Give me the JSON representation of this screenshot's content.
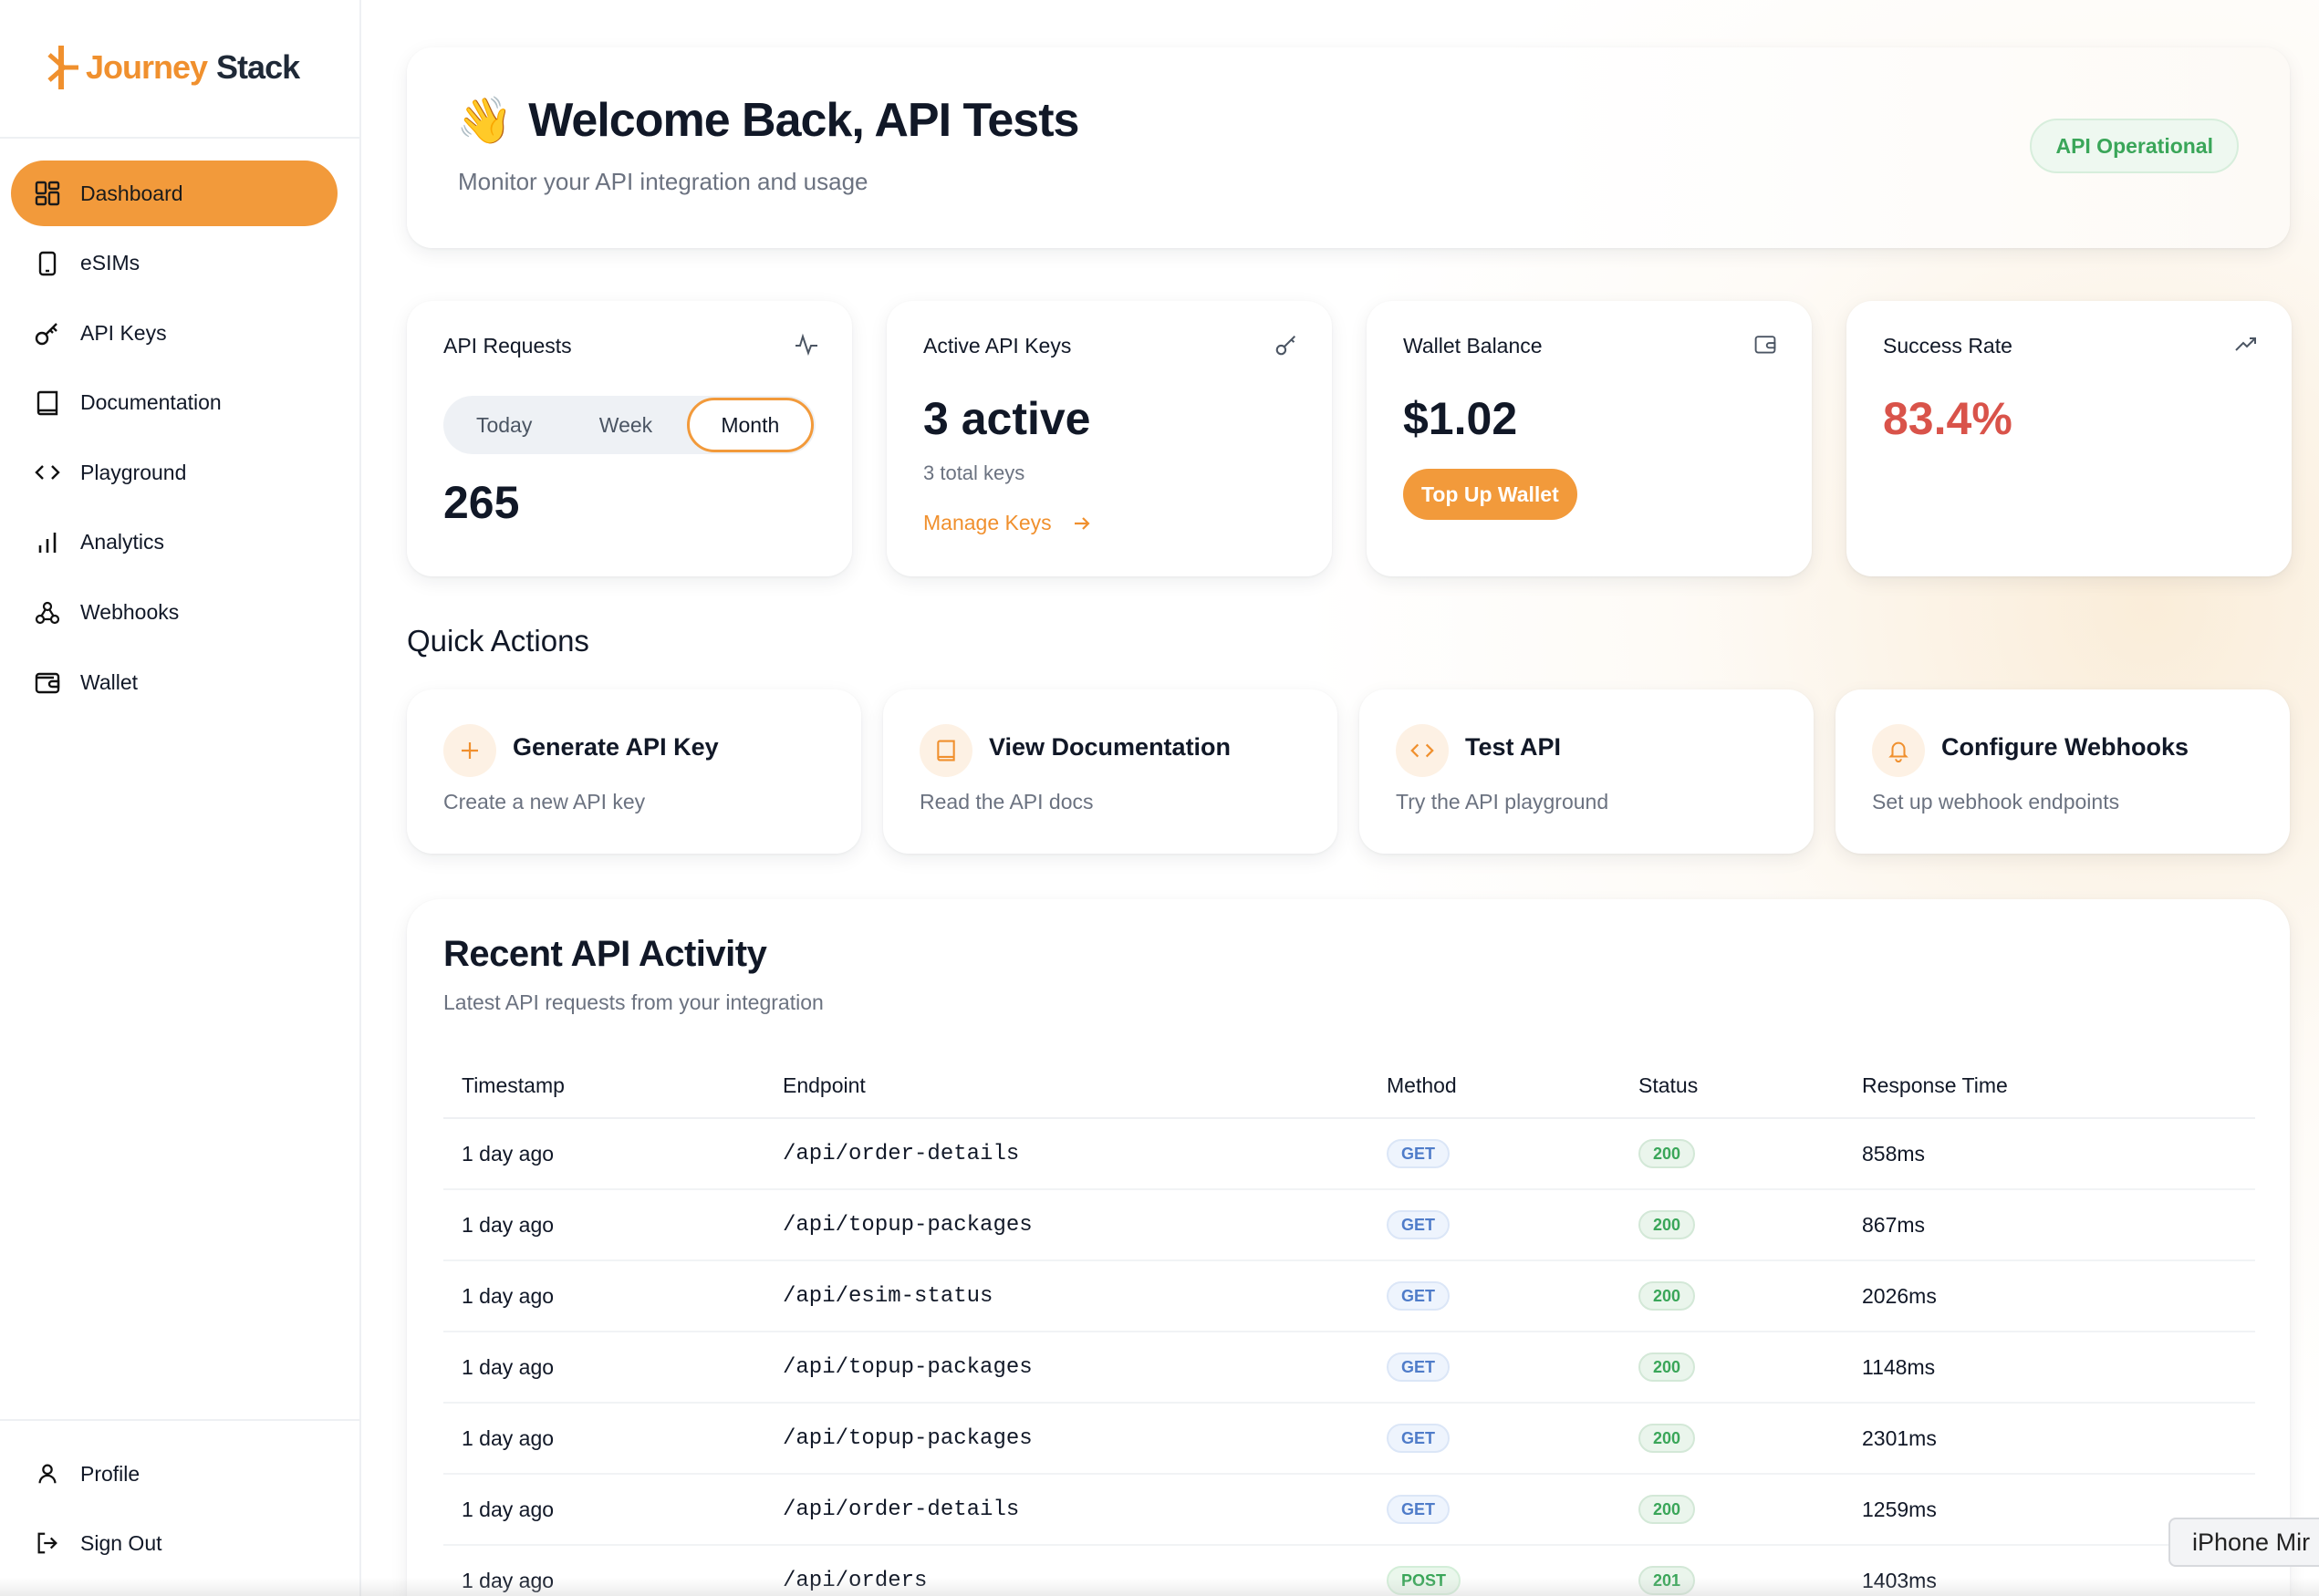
{
  "brand": {
    "name_part1": "Journey",
    "name_part2": "Stack",
    "accent": "#f29a3b"
  },
  "sidebar": {
    "items": [
      {
        "label": "Dashboard",
        "icon": "dashboard-grid-icon",
        "active": true
      },
      {
        "label": "eSIMs",
        "icon": "phone-icon"
      },
      {
        "label": "API Keys",
        "icon": "key-icon"
      },
      {
        "label": "Documentation",
        "icon": "book-icon"
      },
      {
        "label": "Playground",
        "icon": "code-icon"
      },
      {
        "label": "Analytics",
        "icon": "bar-chart-icon"
      },
      {
        "label": "Webhooks",
        "icon": "webhook-icon"
      },
      {
        "label": "Wallet",
        "icon": "wallet-icon"
      }
    ],
    "bottom": [
      {
        "label": "Profile",
        "icon": "user-icon"
      },
      {
        "label": "Sign Out",
        "icon": "sign-out-icon"
      }
    ]
  },
  "welcome": {
    "emoji": "👋",
    "title": "Welcome Back, API Tests",
    "subtitle": "Monitor your API integration and usage",
    "status": "API Operational"
  },
  "stats": {
    "requests": {
      "label": "API Requests",
      "tabs": [
        "Today",
        "Week",
        "Month"
      ],
      "active_tab": "Month",
      "value": "265"
    },
    "keys": {
      "label": "Active API Keys",
      "value": "3 active",
      "sub": "3 total keys",
      "link": "Manage Keys"
    },
    "wallet": {
      "label": "Wallet Balance",
      "value": "$1.02",
      "button": "Top Up Wallet"
    },
    "success": {
      "label": "Success Rate",
      "value": "83.4%",
      "color": "#d9534a"
    }
  },
  "quick_actions": {
    "title": "Quick Actions",
    "items": [
      {
        "title": "Generate API Key",
        "desc": "Create a new API key",
        "icon": "plus-icon"
      },
      {
        "title": "View Documentation",
        "desc": "Read the API docs",
        "icon": "book-icon"
      },
      {
        "title": "Test API",
        "desc": "Try the API playground",
        "icon": "code-icon"
      },
      {
        "title": "Configure Webhooks",
        "desc": "Set up webhook endpoints",
        "icon": "bell-icon"
      }
    ]
  },
  "activity": {
    "title": "Recent API Activity",
    "subtitle": "Latest API requests from your integration",
    "columns": [
      "Timestamp",
      "Endpoint",
      "Method",
      "Status",
      "Response Time"
    ],
    "rows": [
      {
        "timestamp": "1 day ago",
        "endpoint": "/api/order-details",
        "method": "GET",
        "status": "200",
        "time": "858ms"
      },
      {
        "timestamp": "1 day ago",
        "endpoint": "/api/topup-packages",
        "method": "GET",
        "status": "200",
        "time": "867ms"
      },
      {
        "timestamp": "1 day ago",
        "endpoint": "/api/esim-status",
        "method": "GET",
        "status": "200",
        "time": "2026ms"
      },
      {
        "timestamp": "1 day ago",
        "endpoint": "/api/topup-packages",
        "method": "GET",
        "status": "200",
        "time": "1148ms"
      },
      {
        "timestamp": "1 day ago",
        "endpoint": "/api/topup-packages",
        "method": "GET",
        "status": "200",
        "time": "2301ms"
      },
      {
        "timestamp": "1 day ago",
        "endpoint": "/api/order-details",
        "method": "GET",
        "status": "200",
        "time": "1259ms"
      },
      {
        "timestamp": "1 day ago",
        "endpoint": "/api/orders",
        "method": "POST",
        "status": "201",
        "time": "1403ms"
      }
    ]
  },
  "overlay": {
    "tooltip": "iPhone Mir"
  }
}
